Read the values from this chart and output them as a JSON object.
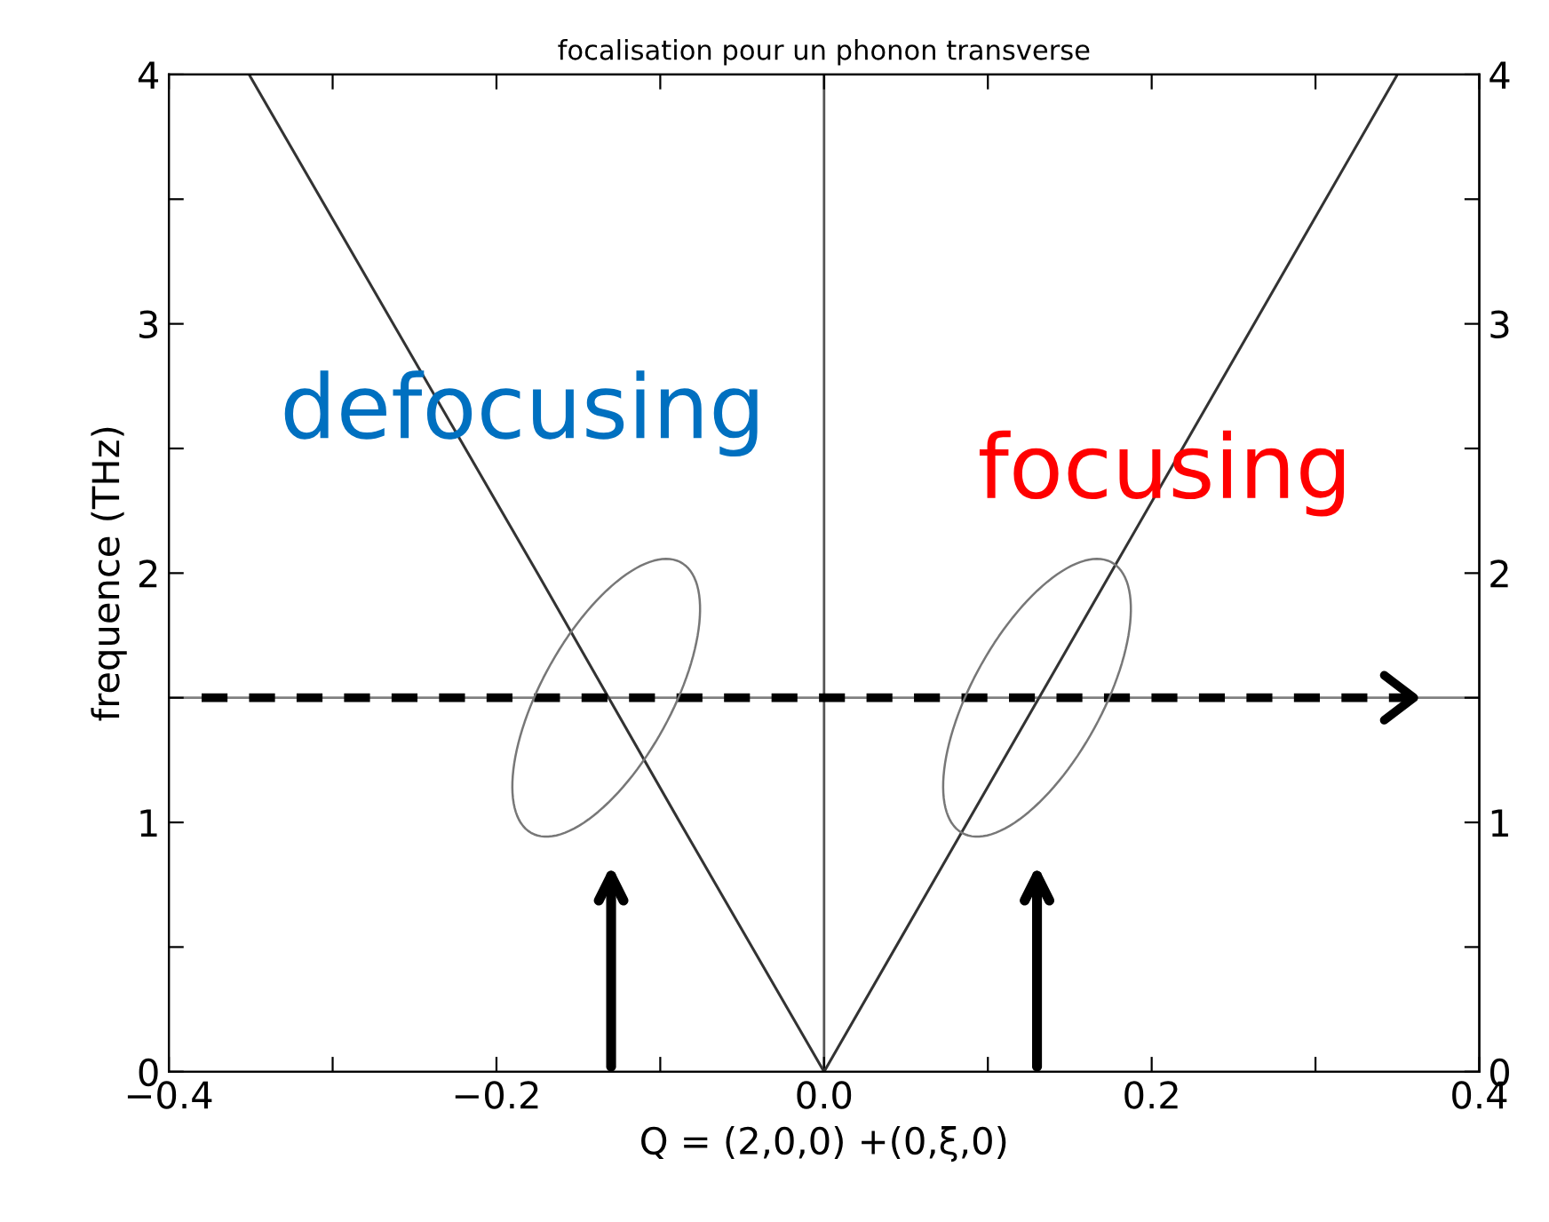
{
  "chart_data": {
    "type": "line",
    "title": "focalisation pour un phonon transverse",
    "xlabel": "Q = (2,0,0) +(0,ξ,0)",
    "ylabel": "frequence (THz)",
    "series": [
      {
        "color": "#333333",
        "x": [
          -0.351,
          -0.263,
          -0.175,
          -0.088,
          0.0
        ],
        "values": [
          4,
          3,
          2,
          1,
          0
        ]
      },
      {
        "color": "#333333",
        "x": [
          0.0,
          0.0875,
          0.175,
          0.2625,
          0.35
        ],
        "values": [
          0,
          1,
          2,
          3,
          4
        ]
      },
      {
        "color": "#000000",
        "x": [
          -0.38,
          0.36
        ],
        "values": [
          1.5,
          1.5
        ],
        "line_style": "dashed"
      }
    ],
    "xlim": [
      -0.4,
      0.4
    ],
    "ylim": [
      0,
      4
    ],
    "y2lim": [
      0,
      4
    ],
    "xticks": [
      {
        "value": -0.4,
        "label": "−0.4"
      },
      {
        "value": -0.3,
        "label": null
      },
      {
        "value": -0.2,
        "label": "−0.2"
      },
      {
        "value": -0.1,
        "label": null
      },
      {
        "value": 0.0,
        "label": "0.0"
      },
      {
        "value": 0.1,
        "label": null
      },
      {
        "value": 0.2,
        "label": "0.2"
      },
      {
        "value": 0.3,
        "label": null
      },
      {
        "value": 0.4,
        "label": "0.4"
      }
    ],
    "yticks": [
      0,
      {
        "value": 0.5,
        "label": null
      },
      1,
      {
        "value": 1.5,
        "label": null
      },
      2,
      {
        "value": 2.5,
        "label": null
      },
      3,
      {
        "value": 3.5,
        "label": null
      },
      4
    ],
    "y2ticks": [
      0,
      {
        "value": 0.5,
        "label": null
      },
      1,
      {
        "value": 1.5,
        "label": null
      },
      2,
      {
        "value": 2.5,
        "label": null
      },
      3,
      {
        "value": 3.5,
        "label": null
      },
      4
    ],
    "ref_lines": [
      {
        "axis": "y",
        "value": 1.5,
        "color": "#808080"
      },
      {
        "axis": "x",
        "value": 0.0,
        "color": "#555555"
      }
    ],
    "annotations": [
      "defocusing",
      "focusing"
    ],
    "grid": false,
    "marker": "none",
    "line_style": "solid"
  }
}
